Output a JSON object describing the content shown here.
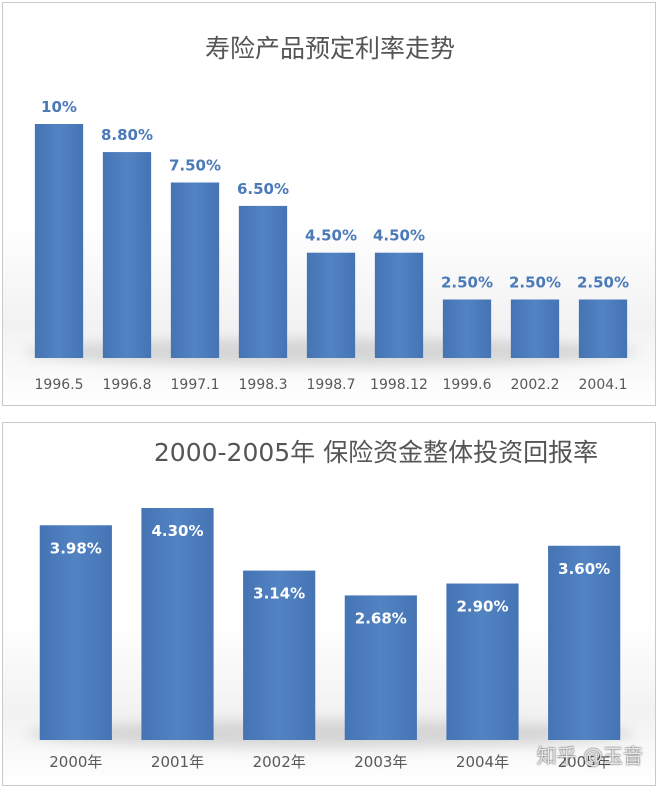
{
  "chart_data": [
    {
      "type": "bar",
      "title": "寿险产品预定利率走势",
      "categories": [
        "1996.5",
        "1996.8",
        "1997.1",
        "1998.3",
        "1998.7",
        "1998.12",
        "1999.6",
        "2002.2",
        "2004.1"
      ],
      "values": [
        10,
        8.8,
        7.5,
        6.5,
        4.5,
        4.5,
        2.5,
        2.5,
        2.5
      ],
      "data_labels": [
        "10%",
        "8.80%",
        "7.50%",
        "6.50%",
        "4.50%",
        "4.50%",
        "2.50%",
        "2.50%",
        "2.50%"
      ],
      "data_label_position": "above",
      "xlabel": "",
      "ylabel": "",
      "ylim": [
        0,
        10
      ],
      "grid": false,
      "legend": "none",
      "bar_color": "#4F7FBE",
      "label_color": "#4A7AB8"
    },
    {
      "type": "bar",
      "title": "2000-2005年  保险资金整体投资回报率",
      "categories": [
        "2000年",
        "2001年",
        "2002年",
        "2003年",
        "2004年",
        "2005年"
      ],
      "values": [
        3.98,
        4.3,
        3.14,
        2.68,
        2.9,
        3.6
      ],
      "data_labels": [
        "3.98%",
        "4.30%",
        "3.14%",
        "2.68%",
        "2.90%",
        "3.60%"
      ],
      "data_label_position": "inside-top",
      "xlabel": "",
      "ylabel": "",
      "ylim": [
        0,
        4.3
      ],
      "grid": false,
      "legend": "none",
      "bar_color": "#4F7FBE",
      "label_color": "#ffffff"
    }
  ],
  "watermark": "知乎 @玉音"
}
